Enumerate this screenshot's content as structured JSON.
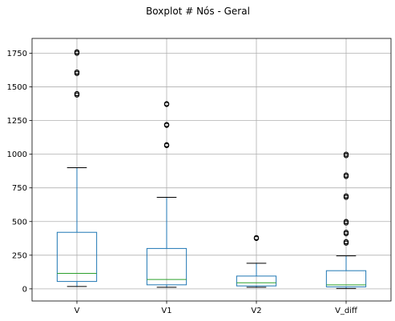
{
  "chart_data": {
    "type": "box",
    "title": "Boxplot # Nós - Geral",
    "xlabel": "",
    "ylabel": "",
    "ylim": [
      -90,
      1860
    ],
    "yticks": [
      0,
      250,
      500,
      750,
      1000,
      1250,
      1500,
      1750
    ],
    "grid": true,
    "colors": {
      "box": "#1f77b4",
      "median": "#2ca02c",
      "whisker": "#000000",
      "grid": "#b0b0b0",
      "flier": "#000000"
    },
    "categories": [
      "V",
      "V1",
      "V2",
      "V_diff"
    ],
    "boxes": [
      {
        "name": "V",
        "whislo": 18,
        "q1": 55,
        "med": 115,
        "q3": 420,
        "whishi": 900,
        "fliers": [
          1440,
          1450,
          1600,
          1610,
          1750,
          1760
        ]
      },
      {
        "name": "V1",
        "whislo": 12,
        "q1": 30,
        "med": 70,
        "q3": 300,
        "whishi": 680,
        "fliers": [
          1065,
          1070,
          1215,
          1220,
          1370,
          1375
        ]
      },
      {
        "name": "V2",
        "whislo": 12,
        "q1": 22,
        "med": 45,
        "q3": 95,
        "whishi": 190,
        "fliers": [
          375,
          380
        ]
      },
      {
        "name": "V_diff",
        "whislo": 3,
        "q1": 15,
        "med": 30,
        "q3": 135,
        "whishi": 245,
        "fliers": [
          340,
          350,
          410,
          420,
          490,
          500,
          680,
          690,
          835,
          845,
          990,
          1000
        ]
      }
    ]
  }
}
